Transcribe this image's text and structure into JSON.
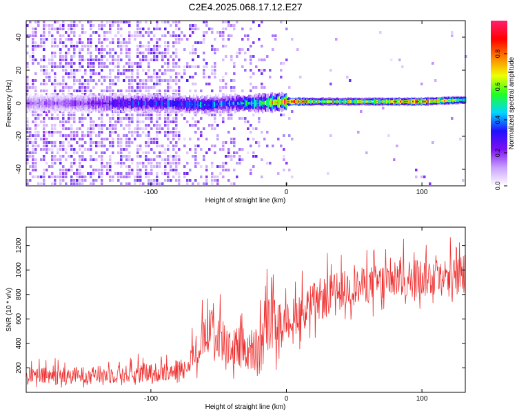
{
  "title": "C2E4.2025.068.17.12.E27",
  "chart_data": [
    {
      "type": "heatmap",
      "title": "C2E4.2025.068.17.12.E27",
      "xlabel": "Height of straight line (km)",
      "ylabel": "Frequency (Hz)",
      "xlim": [
        -192,
        132
      ],
      "ylim": [
        -50,
        50
      ],
      "x_ticks": [
        -100,
        0,
        100
      ],
      "y_ticks": [
        -40,
        -20,
        0,
        20,
        40
      ],
      "x_tick_labels": [
        "-100",
        "0",
        "100"
      ],
      "y_tick_labels": [
        "-40",
        "-20",
        "0",
        "20",
        "40"
      ],
      "colorbar": {
        "label": "Normalized spectral amplitude",
        "range": [
          0,
          1
        ],
        "ticks": [
          0.0,
          0.2,
          0.4,
          0.6,
          0.8
        ],
        "tick_labels": [
          "0.0",
          "0.2",
          "0.4",
          "0.6",
          "0.8"
        ],
        "colormap": "rainbow",
        "colors": [
          "#ffffff",
          "#c9a0ff",
          "#7a10f0",
          "#2010ff",
          "#00d8ff",
          "#20ff20",
          "#f0ff00",
          "#ff8000",
          "#ff0000",
          "#ff2070"
        ]
      },
      "ridge": {
        "description_points_x": [
          -190,
          -150,
          -120,
          -90,
          -60,
          -40,
          -20,
          0,
          20,
          60,
          100,
          130
        ],
        "center_hz": [
          0,
          0,
          0,
          0,
          -1,
          0,
          0,
          1,
          1,
          1,
          1,
          2
        ],
        "peak_amplitude": [
          0.15,
          0.2,
          0.35,
          0.35,
          0.4,
          0.4,
          0.55,
          0.95,
          0.7,
          0.7,
          0.9,
          0.6
        ]
      }
    },
    {
      "type": "line",
      "xlabel": "Height of straight line (km)",
      "ylabel": "SNR (10 * v/v)",
      "xlim": [
        -192,
        132
      ],
      "ylim": [
        0,
        1350
      ],
      "x_ticks": [
        -100,
        0,
        100
      ],
      "y_ticks": [
        200,
        400,
        600,
        800,
        1000,
        1200
      ],
      "x_tick_labels": [
        "-100",
        "0",
        "100"
      ],
      "y_tick_labels": [
        "200",
        "400",
        "600",
        "800",
        "1000",
        "1200"
      ],
      "color": "#ee3030",
      "envelope": {
        "x": [
          -192,
          -150,
          -110,
          -90,
          -75,
          -62,
          -55,
          -40,
          -28,
          -18,
          -12,
          -8,
          -2,
          10,
          25,
          40,
          60,
          80,
          100,
          115,
          132
        ],
        "low": [
          30,
          40,
          50,
          60,
          70,
          100,
          150,
          60,
          30,
          20,
          100,
          150,
          250,
          350,
          450,
          550,
          600,
          620,
          640,
          650,
          650
        ],
        "high": [
          320,
          330,
          350,
          380,
          420,
          780,
          900,
          800,
          750,
          950,
          1100,
          900,
          850,
          1000,
          1150,
          1150,
          1200,
          1250,
          1300,
          1300,
          1280
        ],
        "mid": [
          130,
          140,
          150,
          170,
          200,
          420,
          520,
          380,
          340,
          330,
          600,
          560,
          560,
          660,
          760,
          840,
          880,
          920,
          940,
          950,
          950
        ]
      }
    }
  ]
}
